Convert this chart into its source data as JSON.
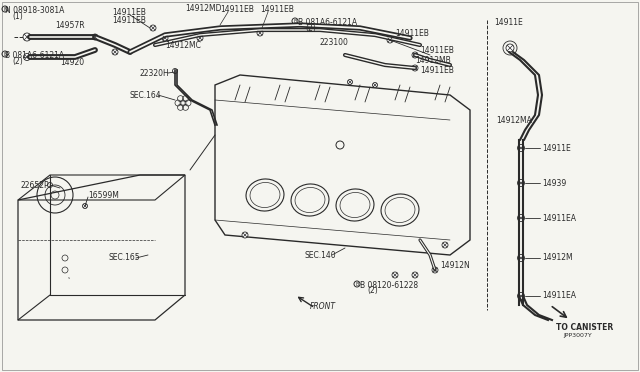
{
  "bg_color": "#f5f5f0",
  "line_color": "#2a2a2a",
  "text_color": "#2a2a2a",
  "fig_width": 6.4,
  "fig_height": 3.72,
  "labels": {
    "n_label": "N 08918-3081A",
    "n_sub": "(1)",
    "b_label1": "B 081A6-6121A",
    "b_sub1": "(2)",
    "b_label2": "B 081A6-6121A",
    "b_sub2": "(2)",
    "b_label3": "B 08120-61228",
    "b_sub3": "(2)",
    "p14957R": "14957R",
    "p14920": "14920",
    "p22320H": "22320H",
    "pSEC164": "SEC.164",
    "p14911EB": "14911EB",
    "p14912MD": "14912MD",
    "p14912MC": "14912MC",
    "p223100": "223100",
    "p14912MB": "14912MB",
    "p14912N": "14912N",
    "pSEC140": "SEC.140",
    "p22652P": "22652P",
    "p16599M": "16599M",
    "pSEC165": "SEC.165",
    "p14911E": "14911E",
    "p14912MA": "14912MA",
    "p14939": "14939",
    "p14911EA": "14911EA",
    "p14912M": "14912M",
    "p14911EA2": "14911EA",
    "to_canister": "TO CANISTER",
    "diagram_id": "JPP3007Y",
    "front_label": "FRONT"
  }
}
